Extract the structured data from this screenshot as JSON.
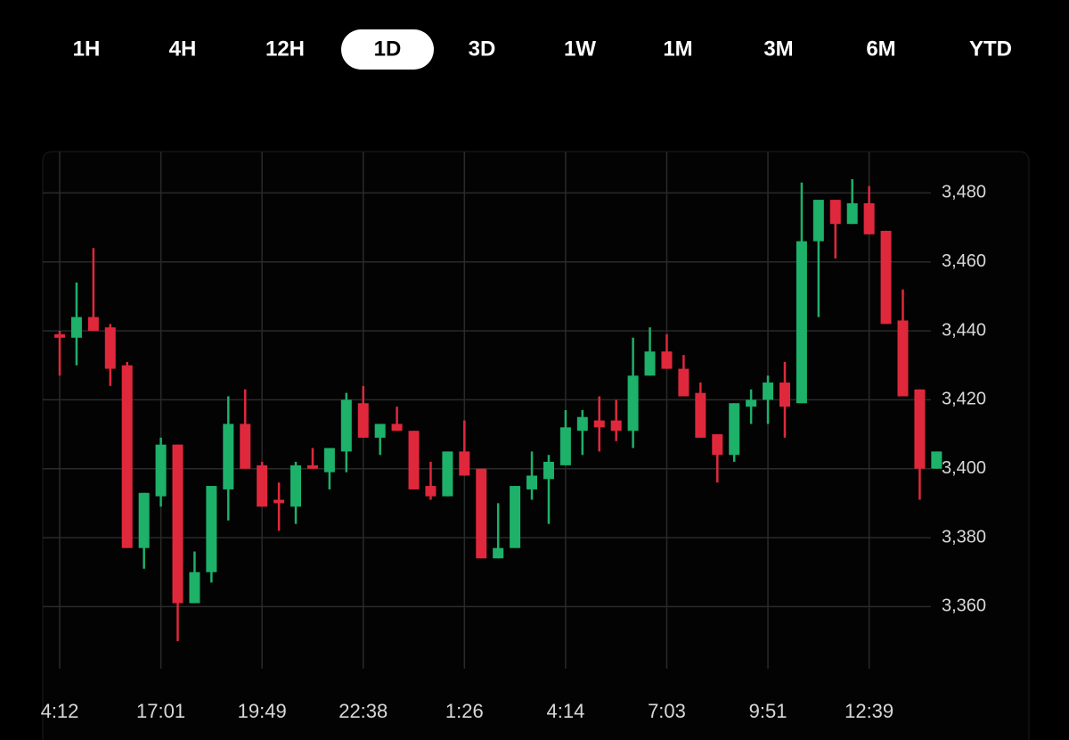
{
  "tabs": [
    "1H",
    "4H",
    "12H",
    "1D",
    "3D",
    "1W",
    "1M",
    "3M",
    "6M",
    "YTD"
  ],
  "selected_tab": 3,
  "chart_data": {
    "type": "candlestick",
    "categories": [
      "4:12",
      null,
      null,
      null,
      null,
      null,
      "17:01",
      null,
      null,
      null,
      null,
      null,
      "19:49",
      null,
      null,
      null,
      null,
      null,
      "22:38",
      null,
      null,
      null,
      null,
      null,
      "1:26",
      null,
      null,
      null,
      null,
      null,
      "4:14",
      null,
      null,
      null,
      null,
      null,
      "7:03",
      null,
      null,
      null,
      null,
      null,
      "9:51",
      null,
      null,
      null,
      null,
      null,
      "12:39",
      null,
      null,
      null,
      null
    ],
    "open": [
      3439,
      3438,
      3444,
      3441,
      3430,
      3377,
      3392,
      3407,
      3361,
      3370,
      3394,
      3413,
      3401,
      3391,
      3389,
      3401,
      3399,
      3405,
      3419,
      3409,
      3413,
      3411,
      3395,
      3392,
      3405,
      3400,
      3374,
      3377,
      3394,
      3397,
      3401,
      3411,
      3414,
      3414,
      3411,
      3427,
      3434,
      3429,
      3422,
      3410,
      3404,
      3418,
      3420,
      3425,
      3419,
      3466,
      3478,
      3471,
      3477,
      3469,
      3443,
      3423,
      3400
    ],
    "high": [
      3440,
      3454,
      3464,
      3442,
      3431,
      3393,
      3409,
      3407,
      3376,
      3395,
      3421,
      3423,
      3402,
      3396,
      3402,
      3406,
      3406,
      3422,
      3424,
      3413,
      3418,
      3411,
      3402,
      3405,
      3414,
      3400,
      3390,
      3395,
      3405,
      3404,
      3417,
      3417,
      3421,
      3420,
      3438,
      3441,
      3439,
      3433,
      3425,
      3410,
      3419,
      3423,
      3427,
      3431,
      3483,
      3478,
      3478,
      3484,
      3482,
      3469,
      3452,
      3423,
      3405
    ],
    "low": [
      3427,
      3430,
      3440,
      3424,
      3377,
      3371,
      3389,
      3350,
      3361,
      3367,
      3385,
      3400,
      3389,
      3382,
      3384,
      3400,
      3394,
      3399,
      3409,
      3404,
      3411,
      3394,
      3391,
      3392,
      3398,
      3374,
      3374,
      3377,
      3391,
      3384,
      3401,
      3404,
      3405,
      3408,
      3406,
      3427,
      3429,
      3421,
      3409,
      3396,
      3402,
      3413,
      3413,
      3409,
      3419,
      3444,
      3461,
      3471,
      3468,
      3442,
      3421,
      3391,
      3400
    ],
    "close": [
      3438,
      3444,
      3440,
      3429,
      3377,
      3393,
      3407,
      3361,
      3370,
      3395,
      3413,
      3400,
      3389,
      3390,
      3401,
      3400,
      3406,
      3420,
      3409,
      3413,
      3411,
      3394,
      3392,
      3405,
      3398,
      3374,
      3377,
      3395,
      3398,
      3402,
      3412,
      3415,
      3412,
      3411,
      3427,
      3434,
      3429,
      3421,
      3409,
      3404,
      3419,
      3420,
      3425,
      3418,
      3466,
      3478,
      3471,
      3477,
      3468,
      3442,
      3421,
      3400,
      3405
    ],
    "up_color": "#1db16a",
    "down_color": "#e0283c",
    "ylim": [
      3342,
      3492
    ],
    "yticks": [
      {
        "value": 3360,
        "label": "3,360"
      },
      {
        "value": 3380,
        "label": "3,380"
      },
      {
        "value": 3400,
        "label": "3,400"
      },
      {
        "value": 3420,
        "label": "3,420"
      },
      {
        "value": 3440,
        "label": "3,440"
      },
      {
        "value": 3460,
        "label": "3,460"
      },
      {
        "value": 3480,
        "label": "3,480"
      }
    ],
    "grid": true
  }
}
